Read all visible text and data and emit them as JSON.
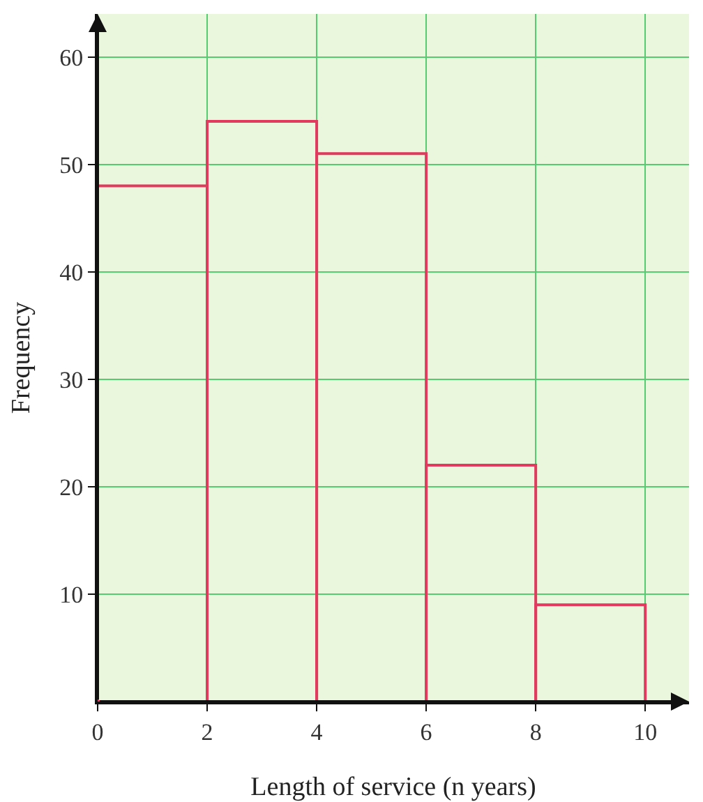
{
  "chart_data": {
    "type": "histogram",
    "xlabel": "Length of service (n years)",
    "ylabel": "Frequency",
    "bins": [
      0,
      2,
      4,
      6,
      8,
      10
    ],
    "values": [
      48,
      54,
      51,
      22,
      9
    ],
    "color": "#e23a5e",
    "xlim": [
      0,
      10.8
    ],
    "ylim": [
      0,
      64
    ],
    "xticks": [
      0,
      2,
      4,
      6,
      8,
      10
    ],
    "yticks": [
      10,
      20,
      30,
      40,
      50,
      60
    ],
    "grid": true
  }
}
